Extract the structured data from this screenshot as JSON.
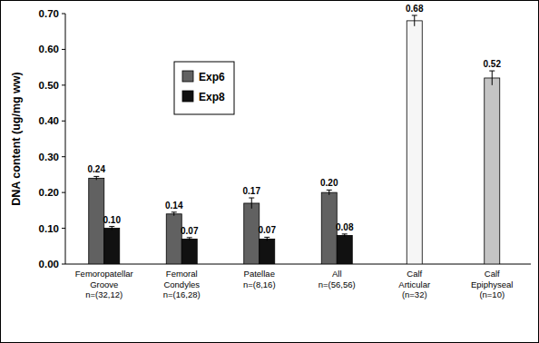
{
  "chart_data": {
    "type": "bar",
    "y_label": "DNA content (ug/mg ww)",
    "categories": [
      "Femoropatellar\nGroove\nn=(32,12)",
      "Femoral\nCondyles\nn=(16,28)",
      "Patellae\nn=(8,16)",
      "All\nn=(56,56)",
      "Calf\nArticular\n(n=32)",
      "Calf\nEpiphyseal\n(n=10)"
    ],
    "series": [
      {
        "name": "Exp6",
        "color": "#616161",
        "values": [
          0.24,
          0.14,
          0.17,
          0.2,
          null,
          null
        ],
        "errors": [
          0.005,
          0.005,
          0.015,
          0.007,
          null,
          null
        ],
        "value_labels": [
          "0.24",
          "0.14",
          "0.17",
          "0.20",
          null,
          null
        ]
      },
      {
        "name": "Exp8",
        "color": "#111111",
        "values": [
          0.1,
          0.07,
          0.07,
          0.08,
          null,
          null
        ],
        "errors": [
          0.005,
          0.004,
          0.005,
          0.004,
          null,
          null
        ],
        "value_labels": [
          "0.10",
          "0.07",
          "0.07",
          "0.08",
          null,
          null
        ]
      },
      {
        "colors": [
          null,
          null,
          null,
          null,
          "#f6f6f6",
          "#c4c4c4"
        ],
        "values": [
          null,
          null,
          null,
          null,
          0.68,
          0.52
        ],
        "errors": [
          null,
          null,
          null,
          null,
          0.015,
          0.02
        ],
        "value_labels": [
          null,
          null,
          null,
          null,
          "0.68",
          "0.52"
        ]
      }
    ],
    "ylim": [
      0,
      0.7
    ],
    "yticks": [
      {
        "value": 0,
        "label": "0.00"
      },
      {
        "value": 0.1,
        "label": "0.10"
      },
      {
        "value": 0.2,
        "label": "0.20"
      },
      {
        "value": 0.3,
        "label": "0.30"
      },
      {
        "value": 0.4,
        "label": "0.40"
      },
      {
        "value": 0.5,
        "label": "0.50"
      },
      {
        "value": 0.6,
        "label": "0.60"
      },
      {
        "value": 0.7,
        "label": "0.70"
      }
    ],
    "grid": false,
    "legend": "upper left",
    "data_labels": true
  }
}
